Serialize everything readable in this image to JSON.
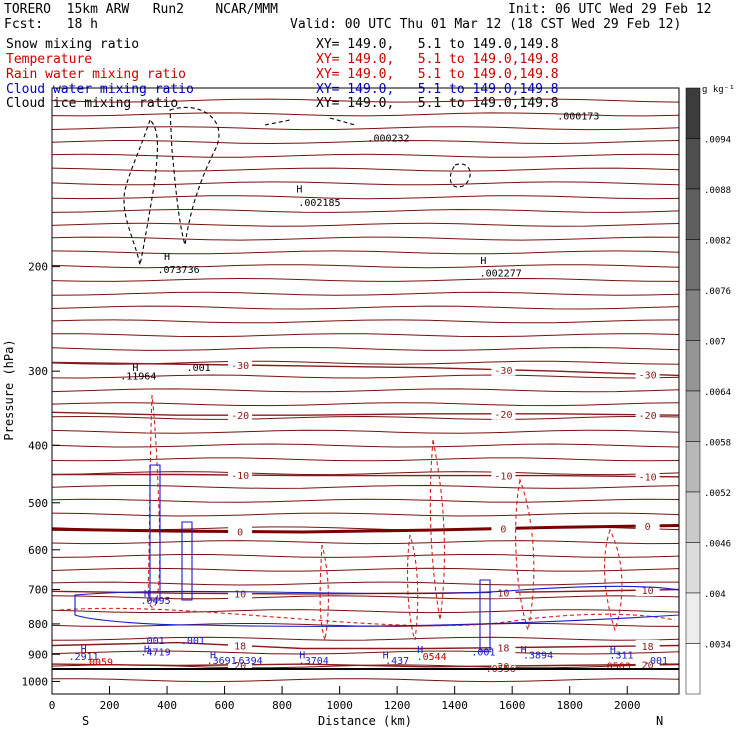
{
  "header": {
    "model": "TORERO  15km ARW   Run2    NCAR/MMM",
    "init": "Init: 06 UTC Wed 29 Feb 12",
    "fcst": "Fcst:   18 h",
    "valid": "Valid: 00 UTC Thu 01 Mar 12 (18 CST Wed 29 Feb 12)",
    "fields": [
      {
        "name": "Snow mixing ratio",
        "xy": "XY= 149.0,   5.1 to 149.0,149.8",
        "color": "#000000"
      },
      {
        "name": "Temperature",
        "xy": "XY= 149.0,   5.1 to 149.0,149.8",
        "color": "#cc0000"
      },
      {
        "name": "Rain water mixing ratio",
        "xy": "XY= 149.0,   5.1 to 149.0,149.8",
        "color": "#cc0000"
      },
      {
        "name": "Cloud water mixing ratio",
        "xy": "XY= 149.0,   5.1 to 149.0,149.8",
        "color": "#0000cc"
      },
      {
        "name": "Cloud ice mixing ratio",
        "xy": "XY= 149.0,   5.1 to 149.0,149.8",
        "color": "#000000"
      }
    ]
  },
  "chart_data": {
    "type": "contour",
    "xlabel": "Distance (km)",
    "ylabel": "Pressure (hPa)",
    "x_ticks": [
      0,
      200,
      400,
      600,
      800,
      1000,
      1200,
      1400,
      1600,
      1800,
      2000
    ],
    "y_ticks": [
      200,
      300,
      400,
      500,
      600,
      700,
      800,
      900,
      1000
    ],
    "xlim": [
      0,
      2180
    ],
    "ylim": [
      1050,
      100
    ],
    "y_scale": "log",
    "left_end_label": "S",
    "right_end_label": "N",
    "colorbar": {
      "unit": "g kg⁻¹",
      "ticks": [
        ".0094",
        ".0088",
        ".0082",
        ".0076",
        ".007",
        ".0064",
        ".0058",
        ".0052",
        ".0046",
        ".004",
        ".0034"
      ]
    },
    "temperature_contours": [
      {
        "label": "-30",
        "p": [
          290,
          292,
          294,
          296,
          300,
          305
        ]
      },
      {
        "label": "-20",
        "p": [
          352,
          356,
          356,
          354,
          354,
          356
        ]
      },
      {
        "label": "-10",
        "p": [
          448,
          448,
          450,
          450,
          450,
          452
        ]
      },
      {
        "label": "0",
        "p": [
          554,
          558,
          560,
          556,
          550,
          546
        ],
        "bold": true
      },
      {
        "label": "10",
        "p": [
          705,
          710,
          712,
          710,
          706,
          700
        ]
      },
      {
        "label": "18",
        "p": [
          870,
          860,
          880,
          880,
          875,
          870
        ]
      },
      {
        "label": "20",
        "p": [
          935,
          940,
          935,
          945,
          940,
          935
        ]
      }
    ],
    "annotations": [
      {
        "text": "H",
        "x": 290,
        "p": 300
      },
      {
        "text": ".11964",
        "x": 300,
        "p": 310
      },
      {
        "text": "H",
        "x": 400,
        "p": 195
      },
      {
        "text": ".073736",
        "x": 440,
        "p": 205
      },
      {
        "text": ".001",
        "x": 510,
        "p": 300
      },
      {
        "text": "H",
        "x": 860,
        "p": 150
      },
      {
        "text": ".002185",
        "x": 930,
        "p": 158
      },
      {
        "text": "H",
        "x": 1500,
        "p": 198
      },
      {
        "text": ".002277",
        "x": 1560,
        "p": 208
      },
      {
        "text": ".000232",
        "x": 1170,
        "p": 123
      },
      {
        "text": ".000173",
        "x": 1830,
        "p": 113
      },
      {
        "text": "H",
        "x": 330,
        "p": 720
      },
      {
        "text": ".0495",
        "x": 360,
        "p": 740
      },
      {
        "text": "H",
        "x": 110,
        "p": 893
      },
      {
        "text": ".2911",
        "x": 110,
        "p": 920
      },
      {
        "text": ".0059",
        "x": 160,
        "p": 940
      },
      {
        "text": "H",
        "x": 330,
        "p": 893
      },
      {
        "text": ".4719",
        "x": 360,
        "p": 905
      },
      {
        "text": ".001",
        "x": 350,
        "p": 865
      },
      {
        "text": ".001",
        "x": 490,
        "p": 865
      },
      {
        "text": "H",
        "x": 560,
        "p": 915
      },
      {
        "text": ".3691",
        "x": 590,
        "p": 935
      },
      {
        "text": ".6394",
        "x": 680,
        "p": 935
      },
      {
        "text": "H",
        "x": 870,
        "p": 915
      },
      {
        "text": ".3704",
        "x": 910,
        "p": 935
      },
      {
        "text": "H",
        "x": 1160,
        "p": 915
      },
      {
        "text": ".437",
        "x": 1200,
        "p": 935
      },
      {
        "text": "H",
        "x": 1280,
        "p": 895
      },
      {
        "text": ".0544",
        "x": 1320,
        "p": 920
      },
      {
        "text": ".001",
        "x": 1500,
        "p": 905
      },
      {
        "text": "H",
        "x": 1640,
        "p": 895
      },
      {
        "text": ".3894",
        "x": 1690,
        "p": 915
      },
      {
        "text": "H",
        "x": 1950,
        "p": 895
      },
      {
        "text": ".311",
        "x": 1980,
        "p": 915
      },
      {
        "text": ".0563",
        "x": 1960,
        "p": 955
      },
      {
        "text": ".001",
        "x": 2100,
        "p": 935
      },
      {
        "text": ".0556",
        "x": 1560,
        "p": 965
      }
    ]
  }
}
